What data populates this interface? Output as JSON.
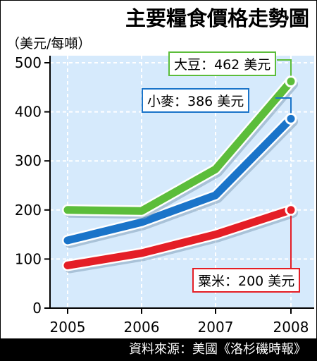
{
  "title": "主要糧食價格走勢圖",
  "unit": "（美元/每噸）",
  "source": "資料來源：美國《洛杉磯時報》",
  "colors": {
    "plot_bg": "#d6eafc",
    "grid": "#ffffff",
    "soy": "#5cbd3a",
    "wheat": "#1a74c9",
    "millet": "#e41e26"
  },
  "chart_data": {
    "type": "line",
    "title": "主要糧食價格走勢圖",
    "ylabel": "（美元/每噸）",
    "xlabel": "",
    "x": [
      "2005",
      "2006",
      "2007",
      "2008"
    ],
    "ylim": [
      0,
      500
    ],
    "yticks": [
      0,
      100,
      200,
      300,
      400,
      500
    ],
    "grid": true,
    "series": [
      {
        "name": "大豆",
        "key": "soy",
        "values": [
          200,
          198,
          283,
          462
        ],
        "label": "大豆：462 美元"
      },
      {
        "name": "小麥",
        "key": "wheat",
        "values": [
          138,
          175,
          230,
          386
        ],
        "label": "小麥：386 美元"
      },
      {
        "name": "粟米",
        "key": "millet",
        "values": [
          87,
          112,
          150,
          200
        ],
        "label": "粟米：200 美元"
      }
    ]
  }
}
